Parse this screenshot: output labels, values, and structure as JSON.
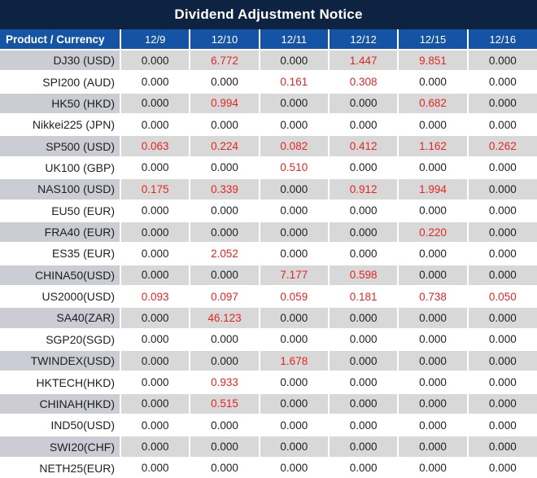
{
  "title": "Dividend Adjustment Notice",
  "table": {
    "product_column_header": "Product / Currency",
    "date_columns": [
      "12/9",
      "12/10",
      "12/11",
      "12/12",
      "12/15",
      "12/16"
    ],
    "zero_display": "0.000",
    "rows": [
      {
        "product": "DJ30 (USD)",
        "values": [
          "0.000",
          "6.772",
          "0.000",
          "1.447",
          "9.851",
          "0.000"
        ]
      },
      {
        "product": "SPI200 (AUD)",
        "values": [
          "0.000",
          "0.000",
          "0.161",
          "0.308",
          "0.000",
          "0.000"
        ]
      },
      {
        "product": "HK50 (HKD)",
        "values": [
          "0.000",
          "0.994",
          "0.000",
          "0.000",
          "0.682",
          "0.000"
        ]
      },
      {
        "product": "Nikkei225 (JPN)",
        "values": [
          "0.000",
          "0.000",
          "0.000",
          "0.000",
          "0.000",
          "0.000"
        ]
      },
      {
        "product": "SP500 (USD)",
        "values": [
          "0.063",
          "0.224",
          "0.082",
          "0.412",
          "1.162",
          "0.262"
        ]
      },
      {
        "product": "UK100 (GBP)",
        "values": [
          "0.000",
          "0.000",
          "0.510",
          "0.000",
          "0.000",
          "0.000"
        ]
      },
      {
        "product": "NAS100 (USD)",
        "values": [
          "0.175",
          "0.339",
          "0.000",
          "0.912",
          "1.994",
          "0.000"
        ]
      },
      {
        "product": "EU50 (EUR)",
        "values": [
          "0.000",
          "0.000",
          "0.000",
          "0.000",
          "0.000",
          "0.000"
        ]
      },
      {
        "product": "FRA40 (EUR)",
        "values": [
          "0.000",
          "0.000",
          "0.000",
          "0.000",
          "0.220",
          "0.000"
        ]
      },
      {
        "product": "ES35 (EUR)",
        "values": [
          "0.000",
          "2.052",
          "0.000",
          "0.000",
          "0.000",
          "0.000"
        ]
      },
      {
        "product": "CHINA50(USD)",
        "values": [
          "0.000",
          "0.000",
          "7.177",
          "0.598",
          "0.000",
          "0.000"
        ]
      },
      {
        "product": "US2000(USD)",
        "values": [
          "0.093",
          "0.097",
          "0.059",
          "0.181",
          "0.738",
          "0.050"
        ]
      },
      {
        "product": "SA40(ZAR)",
        "values": [
          "0.000",
          "46.123",
          "0.000",
          "0.000",
          "0.000",
          "0.000"
        ]
      },
      {
        "product": "SGP20(SGD)",
        "values": [
          "0.000",
          "0.000",
          "0.000",
          "0.000",
          "0.000",
          "0.000"
        ]
      },
      {
        "product": "TWINDEX(USD)",
        "values": [
          "0.000",
          "0.000",
          "1.678",
          "0.000",
          "0.000",
          "0.000"
        ]
      },
      {
        "product": "HKTECH(HKD)",
        "values": [
          "0.000",
          "0.933",
          "0.000",
          "0.000",
          "0.000",
          "0.000"
        ]
      },
      {
        "product": "CHINAH(HKD)",
        "values": [
          "0.000",
          "0.515",
          "0.000",
          "0.000",
          "0.000",
          "0.000"
        ]
      },
      {
        "product": "IND50(USD)",
        "values": [
          "0.000",
          "0.000",
          "0.000",
          "0.000",
          "0.000",
          "0.000"
        ]
      },
      {
        "product": "SWI20(CHF)",
        "values": [
          "0.000",
          "0.000",
          "0.000",
          "0.000",
          "0.000",
          "0.000"
        ]
      },
      {
        "product": "NETH25(EUR)",
        "values": [
          "0.000",
          "0.000",
          "0.000",
          "0.000",
          "0.000",
          "0.000"
        ]
      }
    ]
  },
  "colors": {
    "title_bar_bg": "#0e2242",
    "header_bg": "#1553a4",
    "header_text": "#ffffff",
    "stripe_product_bg": "#cbccd4",
    "stripe_value_bg": "#d8d8d8",
    "white_row_bg": "#ffffff",
    "value_text": "#1f1f1f",
    "nonzero_value_text": "#e52620"
  }
}
